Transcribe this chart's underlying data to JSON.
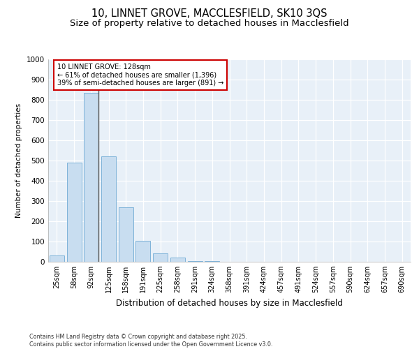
{
  "title": "10, LINNET GROVE, MACCLESFIELD, SK10 3QS",
  "subtitle": "Size of property relative to detached houses in Macclesfield",
  "xlabel": "Distribution of detached houses by size in Macclesfield",
  "ylabel": "Number of detached properties",
  "categories": [
    "25sqm",
    "58sqm",
    "92sqm",
    "125sqm",
    "158sqm",
    "191sqm",
    "225sqm",
    "258sqm",
    "291sqm",
    "324sqm",
    "358sqm",
    "391sqm",
    "424sqm",
    "457sqm",
    "491sqm",
    "524sqm",
    "557sqm",
    "590sqm",
    "624sqm",
    "657sqm",
    "690sqm"
  ],
  "values": [
    30,
    490,
    835,
    520,
    270,
    105,
    40,
    20,
    5,
    2,
    1,
    0,
    0,
    0,
    0,
    0,
    0,
    0,
    0,
    0,
    0
  ],
  "bar_color": "#c8ddf0",
  "bar_edgecolor": "#7fb3d9",
  "vline_bar_index": 2,
  "annotation_line1": "10 LINNET GROVE: 128sqm",
  "annotation_line2": "← 61% of detached houses are smaller (1,396)",
  "annotation_line3": "39% of semi-detached houses are larger (891) →",
  "annotation_box_edgecolor": "#cc0000",
  "ylim": [
    0,
    1000
  ],
  "yticks": [
    0,
    100,
    200,
    300,
    400,
    500,
    600,
    700,
    800,
    900,
    1000
  ],
  "plot_bg_color": "#e8f0f8",
  "footer_line1": "Contains HM Land Registry data © Crown copyright and database right 2025.",
  "footer_line2": "Contains public sector information licensed under the Open Government Licence v3.0."
}
